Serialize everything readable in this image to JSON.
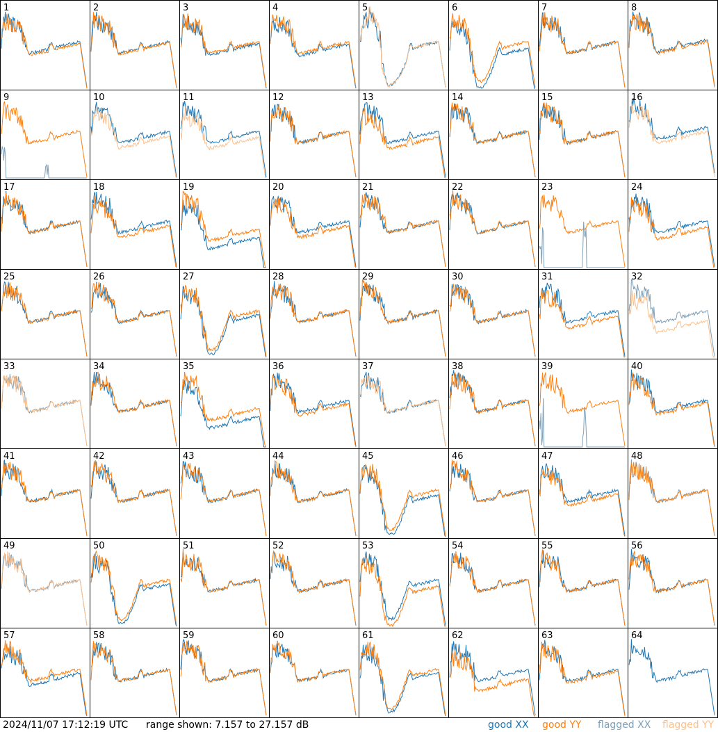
{
  "chart_data": {
    "type": "line",
    "layout": "8x8 small multiples",
    "ylim_db": [
      7.157,
      27.157
    ],
    "series": [
      {
        "name": "good XX",
        "color": "#1f77b4"
      },
      {
        "name": "good YY",
        "color": "#ff7f0e"
      },
      {
        "name": "flagged XX",
        "color": "#7f9fb7"
      },
      {
        "name": "flagged YY",
        "color": "#fcc08c"
      }
    ],
    "panels": [
      {
        "id": "1",
        "xx": "good",
        "yy": "good",
        "shape": "normal",
        "xx_offset": 0.0,
        "yy_offset": 0.02
      },
      {
        "id": "2",
        "xx": "good",
        "yy": "good",
        "shape": "normal",
        "xx_offset": 0.0,
        "yy_offset": 0.01
      },
      {
        "id": "3",
        "xx": "good",
        "yy": "good",
        "shape": "normal",
        "xx_offset": 0.02,
        "yy_offset": 0.0
      },
      {
        "id": "4",
        "xx": "good",
        "yy": "good",
        "shape": "normal",
        "xx_offset": 0.03,
        "yy_offset": 0.0
      },
      {
        "id": "5",
        "xx": "good",
        "yy": "flagged",
        "shape": "broad_dip",
        "xx_offset": 0.0,
        "yy_offset": 0.0
      },
      {
        "id": "6",
        "xx": "good",
        "yy": "good",
        "shape": "deep_dip",
        "xx_offset": 0.08,
        "yy_offset": 0.0
      },
      {
        "id": "7",
        "xx": "good",
        "yy": "good",
        "shape": "normal",
        "xx_offset": 0.0,
        "yy_offset": 0.0
      },
      {
        "id": "8",
        "xx": "good",
        "yy": "good",
        "shape": "normal",
        "xx_offset": -0.02,
        "yy_offset": 0.0
      },
      {
        "id": "9",
        "xx": "flagged",
        "yy": "good",
        "shape": "normal",
        "xx_offset": 0.0,
        "yy_offset": 0.0
      },
      {
        "id": "10",
        "xx": "good",
        "yy": "flagged",
        "shape": "normal",
        "xx_offset": 0.0,
        "yy_offset": 0.06
      },
      {
        "id": "11",
        "xx": "good",
        "yy": "flagged",
        "shape": "normal",
        "xx_offset": 0.0,
        "yy_offset": 0.07
      },
      {
        "id": "12",
        "xx": "good",
        "yy": "good",
        "shape": "normal",
        "xx_offset": 0.0,
        "yy_offset": 0.0
      },
      {
        "id": "13",
        "xx": "good",
        "yy": "good",
        "shape": "normal",
        "xx_offset": 0.0,
        "yy_offset": 0.07
      },
      {
        "id": "14",
        "xx": "good",
        "yy": "good",
        "shape": "normal",
        "xx_offset": 0.0,
        "yy_offset": 0.0
      },
      {
        "id": "15",
        "xx": "good",
        "yy": "good",
        "shape": "normal",
        "xx_offset": 0.0,
        "yy_offset": 0.0
      },
      {
        "id": "16",
        "xx": "good",
        "yy": "flagged",
        "shape": "normal",
        "xx_offset": -0.05,
        "yy_offset": 0.0
      },
      {
        "id": "17",
        "xx": "good",
        "yy": "good",
        "shape": "normal",
        "xx_offset": 0.0,
        "yy_offset": 0.0
      },
      {
        "id": "18",
        "xx": "good",
        "yy": "good",
        "shape": "normal",
        "xx_offset": 0.0,
        "yy_offset": 0.06
      },
      {
        "id": "19",
        "xx": "good",
        "yy": "good",
        "shape": "xx_low",
        "xx_offset": 0.1,
        "yy_offset": 0.0
      },
      {
        "id": "20",
        "xx": "good",
        "yy": "good",
        "shape": "normal",
        "xx_offset": 0.0,
        "yy_offset": 0.06
      },
      {
        "id": "21",
        "xx": "good",
        "yy": "good",
        "shape": "normal",
        "xx_offset": 0.0,
        "yy_offset": 0.0
      },
      {
        "id": "22",
        "xx": "good",
        "yy": "good",
        "shape": "normal",
        "xx_offset": 0.0,
        "yy_offset": 0.0
      },
      {
        "id": "23",
        "xx": "flagged",
        "yy": "good",
        "shape": "normal",
        "xx_offset": 0.0,
        "yy_offset": 0.0
      },
      {
        "id": "24",
        "xx": "good",
        "yy": "good",
        "shape": "normal",
        "xx_offset": 0.0,
        "yy_offset": 0.08
      },
      {
        "id": "25",
        "xx": "good",
        "yy": "good",
        "shape": "normal",
        "xx_offset": 0.0,
        "yy_offset": 0.0
      },
      {
        "id": "26",
        "xx": "good",
        "yy": "good",
        "shape": "normal",
        "xx_offset": 0.0,
        "yy_offset": 0.0
      },
      {
        "id": "27",
        "xx": "good",
        "yy": "good",
        "shape": "deep_dip",
        "xx_offset": 0.05,
        "yy_offset": 0.0
      },
      {
        "id": "28",
        "xx": "good",
        "yy": "good",
        "shape": "normal",
        "xx_offset": 0.0,
        "yy_offset": 0.0
      },
      {
        "id": "29",
        "xx": "good",
        "yy": "good",
        "shape": "normal",
        "xx_offset": 0.0,
        "yy_offset": 0.0
      },
      {
        "id": "30",
        "xx": "good",
        "yy": "good",
        "shape": "normal",
        "xx_offset": 0.0,
        "yy_offset": 0.0
      },
      {
        "id": "31",
        "xx": "good",
        "yy": "good",
        "shape": "normal",
        "xx_offset": 0.0,
        "yy_offset": 0.07
      },
      {
        "id": "32",
        "xx": "flagged",
        "yy": "flagged",
        "shape": "normal",
        "xx_offset": 0.0,
        "yy_offset": 0.12
      },
      {
        "id": "33",
        "xx": "flagged",
        "yy": "flagged",
        "shape": "normal",
        "xx_offset": 0.0,
        "yy_offset": 0.0
      },
      {
        "id": "34",
        "xx": "good",
        "yy": "good",
        "shape": "normal",
        "xx_offset": 0.0,
        "yy_offset": 0.0
      },
      {
        "id": "35",
        "xx": "good",
        "yy": "good",
        "shape": "xx_low",
        "xx_offset": 0.1,
        "yy_offset": 0.0
      },
      {
        "id": "36",
        "xx": "good",
        "yy": "good",
        "shape": "normal",
        "xx_offset": 0.0,
        "yy_offset": 0.04
      },
      {
        "id": "37",
        "xx": "good",
        "yy": "flagged",
        "shape": "normal",
        "xx_offset": 0.0,
        "yy_offset": 0.0
      },
      {
        "id": "38",
        "xx": "good",
        "yy": "good",
        "shape": "normal",
        "xx_offset": 0.0,
        "yy_offset": 0.0
      },
      {
        "id": "39",
        "xx": "flagged",
        "yy": "good",
        "shape": "normal",
        "xx_offset": 0.0,
        "yy_offset": 0.0
      },
      {
        "id": "40",
        "xx": "good",
        "yy": "good",
        "shape": "normal",
        "xx_offset": 0.0,
        "yy_offset": 0.03
      },
      {
        "id": "41",
        "xx": "good",
        "yy": "good",
        "shape": "normal",
        "xx_offset": 0.0,
        "yy_offset": 0.0
      },
      {
        "id": "42",
        "xx": "good",
        "yy": "good",
        "shape": "normal",
        "xx_offset": 0.0,
        "yy_offset": 0.0
      },
      {
        "id": "43",
        "xx": "good",
        "yy": "good",
        "shape": "normal",
        "xx_offset": 0.0,
        "yy_offset": 0.0
      },
      {
        "id": "44",
        "xx": "good",
        "yy": "good",
        "shape": "normal",
        "xx_offset": 0.0,
        "yy_offset": 0.0
      },
      {
        "id": "45",
        "xx": "good",
        "yy": "good",
        "shape": "deep_dip",
        "xx_offset": 0.06,
        "yy_offset": 0.0
      },
      {
        "id": "46",
        "xx": "good",
        "yy": "good",
        "shape": "normal",
        "xx_offset": 0.0,
        "yy_offset": 0.0
      },
      {
        "id": "47",
        "xx": "good",
        "yy": "good",
        "shape": "normal",
        "xx_offset": 0.0,
        "yy_offset": 0.05
      },
      {
        "id": "48",
        "xx": "flagged",
        "yy": "good",
        "shape": "normal",
        "xx_offset": 0.0,
        "yy_offset": 0.0
      },
      {
        "id": "49",
        "xx": "flagged",
        "yy": "flagged",
        "shape": "normal",
        "xx_offset": 0.0,
        "yy_offset": 0.0
      },
      {
        "id": "50",
        "xx": "good",
        "yy": "good",
        "shape": "deep_dip",
        "xx_offset": 0.05,
        "yy_offset": 0.0
      },
      {
        "id": "51",
        "xx": "good",
        "yy": "good",
        "shape": "normal",
        "xx_offset": 0.0,
        "yy_offset": 0.0
      },
      {
        "id": "52",
        "xx": "good",
        "yy": "good",
        "shape": "normal",
        "xx_offset": 0.0,
        "yy_offset": 0.0
      },
      {
        "id": "53",
        "xx": "good",
        "yy": "good",
        "shape": "deep_dip",
        "xx_offset": 0.0,
        "yy_offset": 0.08
      },
      {
        "id": "54",
        "xx": "good",
        "yy": "good",
        "shape": "normal",
        "xx_offset": 0.0,
        "yy_offset": 0.0
      },
      {
        "id": "55",
        "xx": "good",
        "yy": "good",
        "shape": "normal",
        "xx_offset": 0.0,
        "yy_offset": 0.0
      },
      {
        "id": "56",
        "xx": "good",
        "yy": "good",
        "shape": "normal",
        "xx_offset": 0.0,
        "yy_offset": 0.0
      },
      {
        "id": "57",
        "xx": "good",
        "yy": "good",
        "shape": "normal",
        "xx_offset": 0.05,
        "yy_offset": 0.0
      },
      {
        "id": "58",
        "xx": "good",
        "yy": "good",
        "shape": "normal",
        "xx_offset": 0.0,
        "yy_offset": 0.0
      },
      {
        "id": "59",
        "xx": "good",
        "yy": "good",
        "shape": "normal",
        "xx_offset": 0.0,
        "yy_offset": 0.0
      },
      {
        "id": "60",
        "xx": "good",
        "yy": "good",
        "shape": "normal",
        "xx_offset": 0.0,
        "yy_offset": 0.0
      },
      {
        "id": "61",
        "xx": "good",
        "yy": "good",
        "shape": "deep_dip",
        "xx_offset": 0.04,
        "yy_offset": 0.0
      },
      {
        "id": "62",
        "xx": "good",
        "yy": "good",
        "shape": "normal",
        "xx_offset": 0.0,
        "yy_offset": 0.12
      },
      {
        "id": "63",
        "xx": "good",
        "yy": "good",
        "shape": "normal",
        "xx_offset": 0.0,
        "yy_offset": 0.02
      },
      {
        "id": "64",
        "xx": "good",
        "yy": "none",
        "shape": "normal",
        "xx_offset": 0.0,
        "yy_offset": 0.0
      }
    ]
  },
  "footer": {
    "timestamp": "2024/11/07 17:12:19 UTC",
    "range_text": "range shown: 7.157 to 27.157 dB",
    "legend": [
      {
        "label": "good XX",
        "color": "#1f77b4"
      },
      {
        "label": "good YY",
        "color": "#ff7f0e"
      },
      {
        "label": "flagged XX",
        "color": "#7f9fb7"
      },
      {
        "label": "flagged YY",
        "color": "#fcc08c"
      }
    ]
  }
}
